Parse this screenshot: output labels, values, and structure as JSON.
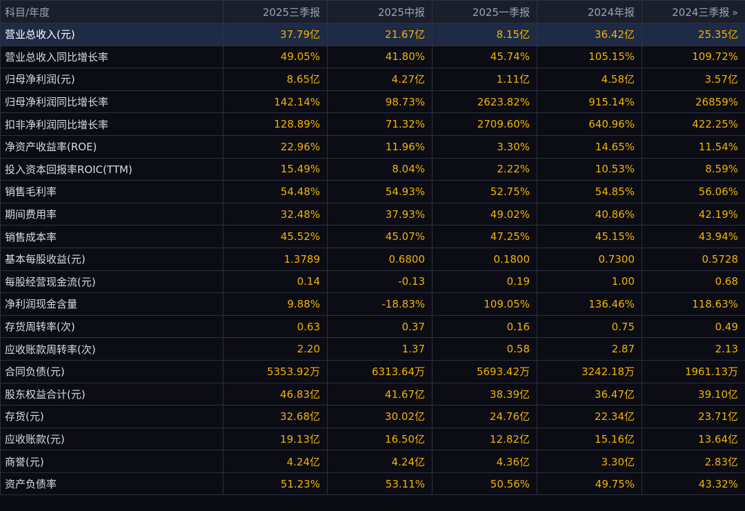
{
  "table": {
    "header": {
      "label": "科目/年度",
      "columns": [
        "2025三季报",
        "2025中报",
        "2025一季报",
        "2024年报",
        "2024三季报"
      ],
      "more_icon": "»"
    },
    "rows": [
      {
        "label": "营业总收入(元)",
        "values": [
          "37.79亿",
          "21.67亿",
          "8.15亿",
          "36.42亿",
          "25.35亿"
        ]
      },
      {
        "label": "营业总收入同比增长率",
        "values": [
          "49.05%",
          "41.80%",
          "45.74%",
          "105.15%",
          "109.72%"
        ]
      },
      {
        "label": "归母净利润(元)",
        "values": [
          "8.65亿",
          "4.27亿",
          "1.11亿",
          "4.58亿",
          "3.57亿"
        ]
      },
      {
        "label": "归母净利润同比增长率",
        "values": [
          "142.14%",
          "98.73%",
          "2623.82%",
          "915.14%",
          "26859%"
        ]
      },
      {
        "label": "扣非净利润同比增长率",
        "values": [
          "128.89%",
          "71.32%",
          "2709.60%",
          "640.96%",
          "422.25%"
        ]
      },
      {
        "label": "净资产收益率(ROE)",
        "values": [
          "22.96%",
          "11.96%",
          "3.30%",
          "14.65%",
          "11.54%"
        ]
      },
      {
        "label": "投入资本回报率ROIC(TTM)",
        "values": [
          "15.49%",
          "8.04%",
          "2.22%",
          "10.53%",
          "8.59%"
        ]
      },
      {
        "label": "销售毛利率",
        "values": [
          "54.48%",
          "54.93%",
          "52.75%",
          "54.85%",
          "56.06%"
        ]
      },
      {
        "label": "期间费用率",
        "values": [
          "32.48%",
          "37.93%",
          "49.02%",
          "40.86%",
          "42.19%"
        ]
      },
      {
        "label": "销售成本率",
        "values": [
          "45.52%",
          "45.07%",
          "47.25%",
          "45.15%",
          "43.94%"
        ]
      },
      {
        "label": "基本每股收益(元)",
        "values": [
          "1.3789",
          "0.6800",
          "0.1800",
          "0.7300",
          "0.5728"
        ]
      },
      {
        "label": "每股经营现金流(元)",
        "values": [
          "0.14",
          "-0.13",
          "0.19",
          "1.00",
          "0.68"
        ]
      },
      {
        "label": "净利润现金含量",
        "values": [
          "9.88%",
          "-18.83%",
          "109.05%",
          "136.46%",
          "118.63%"
        ]
      },
      {
        "label": "存货周转率(次)",
        "values": [
          "0.63",
          "0.37",
          "0.16",
          "0.75",
          "0.49"
        ]
      },
      {
        "label": "应收账款周转率(次)",
        "values": [
          "2.20",
          "1.37",
          "0.58",
          "2.87",
          "2.13"
        ]
      },
      {
        "label": "合同负债(元)",
        "values": [
          "5353.92万",
          "6313.64万",
          "5693.42万",
          "3242.18万",
          "1961.13万"
        ]
      },
      {
        "label": "股东权益合计(元)",
        "values": [
          "46.83亿",
          "41.67亿",
          "38.39亿",
          "36.47亿",
          "39.10亿"
        ]
      },
      {
        "label": "存货(元)",
        "values": [
          "32.68亿",
          "30.02亿",
          "24.76亿",
          "22.34亿",
          "23.71亿"
        ]
      },
      {
        "label": "应收账款(元)",
        "values": [
          "19.13亿",
          "16.50亿",
          "12.82亿",
          "15.16亿",
          "13.64亿"
        ]
      },
      {
        "label": "商誉(元)",
        "values": [
          "4.24亿",
          "4.24亿",
          "4.36亿",
          "3.30亿",
          "2.83亿"
        ]
      },
      {
        "label": "资产负债率",
        "values": [
          "51.23%",
          "53.11%",
          "50.56%",
          "49.75%",
          "43.32%"
        ]
      }
    ]
  },
  "colors": {
    "background": "#0c0c14",
    "header_bg": "#1a1f2b",
    "highlight_row_bg": "#1f2a44",
    "value_color": "#f2b400",
    "label_color": "#d8dde4"
  }
}
